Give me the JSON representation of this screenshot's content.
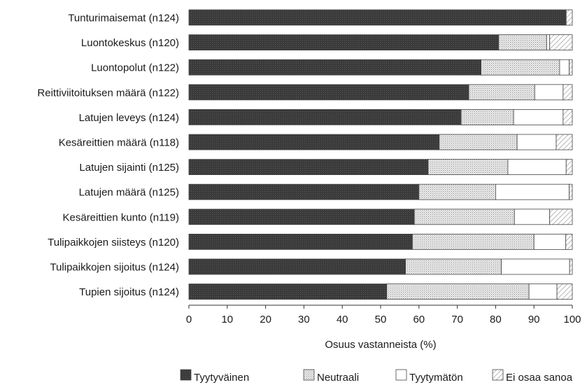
{
  "chart_data": {
    "type": "bar",
    "orientation": "horizontal",
    "stacked": true,
    "categories": [
      "Tunturimaisemat (n124)",
      "Luontokeskus (n120)",
      "Luontopolut (n122)",
      "Reittiviitoituksen määrä (n122)",
      "Latujen leveys (n124)",
      "Kesäreittien määrä (n118)",
      "Latujen sijainti (n125)",
      "Latujen määrä (n125)",
      "Kesäreittien kunto (n119)",
      "Tulipaikkojen siisteys (n120)",
      "Tulipaikkojen sijoitus (n124)",
      "Tupien sijoitus (n124)"
    ],
    "series": [
      {
        "name": "Tyytyväinen",
        "color": "#3c3c3c",
        "pattern": "solid-dark",
        "values": [
          98.4,
          80.8,
          76.2,
          73.0,
          71.0,
          65.3,
          62.4,
          60.0,
          58.8,
          58.3,
          56.5,
          51.6
        ]
      },
      {
        "name": "Neutraali",
        "color": "#d6d6d6",
        "pattern": "dotted-light",
        "values": [
          0.0,
          12.5,
          20.5,
          17.2,
          13.7,
          20.3,
          20.8,
          20.0,
          26.1,
          31.7,
          25.0,
          37.1
        ]
      },
      {
        "name": "Tyytymätön",
        "color": "#ffffff",
        "pattern": "white",
        "values": [
          0.0,
          0.8,
          2.5,
          7.4,
          12.9,
          10.2,
          15.2,
          19.2,
          9.2,
          8.3,
          17.8,
          7.3
        ]
      },
      {
        "name": "Ei osaa sanoa",
        "color": "#ffffff",
        "pattern": "hatched",
        "values": [
          1.6,
          5.9,
          0.8,
          2.4,
          2.4,
          4.2,
          1.6,
          0.8,
          5.9,
          1.7,
          0.7,
          4.0
        ]
      }
    ],
    "xlabel": "Osuus vastanneista (%)",
    "xlim": [
      0,
      100
    ],
    "xticks": [
      "0",
      "10",
      "20",
      "30",
      "40",
      "50",
      "60",
      "70",
      "80",
      "90",
      "100"
    ],
    "grid": false,
    "legend_position": "bottom"
  }
}
